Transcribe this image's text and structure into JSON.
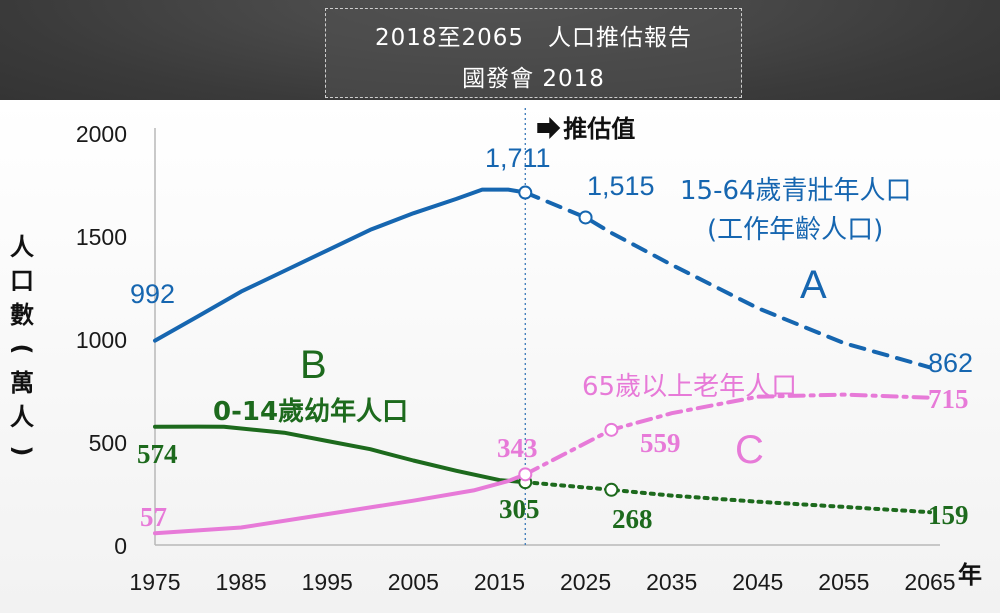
{
  "header": {
    "title_line1": "2018至2065　人口推估報告",
    "title_line2": "國發會  2018"
  },
  "chart_data": {
    "type": "line",
    "title": "2018至2065　人口推估報告",
    "subtitle": "國發會  2018",
    "ylabel_chars": [
      "人",
      "口",
      "數",
      "(",
      "萬",
      "人",
      ")"
    ],
    "xlabel": "年",
    "xlim": [
      1975,
      2065
    ],
    "ylim": [
      0,
      2000
    ],
    "x_ticks": [
      "1975",
      "1985",
      "1995",
      "2005",
      "2015",
      "2025",
      "2035",
      "2045",
      "2055",
      "2065"
    ],
    "y_ticks": [
      "2000",
      "1500",
      "1000",
      "500",
      "0"
    ],
    "projection_start_year": 2018,
    "projection_label": "推估值",
    "series": [
      {
        "name": "15-64歲青壯年人口",
        "name2": "(工作年齡人口)",
        "group_letter": "A",
        "color": "#1666b0",
        "actual": [
          [
            1975,
            992
          ],
          [
            1980,
            1110
          ],
          [
            1985,
            1230
          ],
          [
            1990,
            1330
          ],
          [
            1995,
            1430
          ],
          [
            2000,
            1530
          ],
          [
            2005,
            1610
          ],
          [
            2010,
            1680
          ],
          [
            2013,
            1725
          ],
          [
            2016,
            1725
          ],
          [
            2018,
            1711
          ]
        ],
        "projected": [
          [
            2018,
            1711
          ],
          [
            2025,
            1590
          ],
          [
            2028,
            1515
          ],
          [
            2035,
            1360
          ],
          [
            2045,
            1150
          ],
          [
            2055,
            980
          ],
          [
            2065,
            862
          ]
        ],
        "labels": [
          "992",
          "1,711",
          "1,515",
          "862"
        ]
      },
      {
        "name": "0-14歲幼年人口",
        "group_letter": "B",
        "color": "#1d6a1d",
        "actual": [
          [
            1975,
            574
          ],
          [
            1980,
            575
          ],
          [
            1983,
            574
          ],
          [
            1990,
            545
          ],
          [
            1995,
            505
          ],
          [
            2000,
            465
          ],
          [
            2005,
            410
          ],
          [
            2010,
            360
          ],
          [
            2015,
            315
          ],
          [
            2018,
            305
          ]
        ],
        "projected": [
          [
            2018,
            305
          ],
          [
            2028,
            268
          ],
          [
            2035,
            240
          ],
          [
            2045,
            210
          ],
          [
            2055,
            185
          ],
          [
            2065,
            159
          ]
        ],
        "labels": [
          "574",
          "305",
          "268",
          "159"
        ]
      },
      {
        "name": "65歲以上老年人口",
        "group_letter": "C",
        "color": "#e77ad8",
        "actual": [
          [
            1975,
            57
          ],
          [
            1985,
            85
          ],
          [
            1995,
            150
          ],
          [
            2005,
            215
          ],
          [
            2012,
            265
          ],
          [
            2016,
            310
          ],
          [
            2018,
            343
          ]
        ],
        "projected": [
          [
            2018,
            343
          ],
          [
            2028,
            559
          ],
          [
            2035,
            640
          ],
          [
            2045,
            720
          ],
          [
            2055,
            730
          ],
          [
            2065,
            715
          ]
        ],
        "labels": [
          "57",
          "343",
          "559",
          "715"
        ]
      }
    ]
  }
}
